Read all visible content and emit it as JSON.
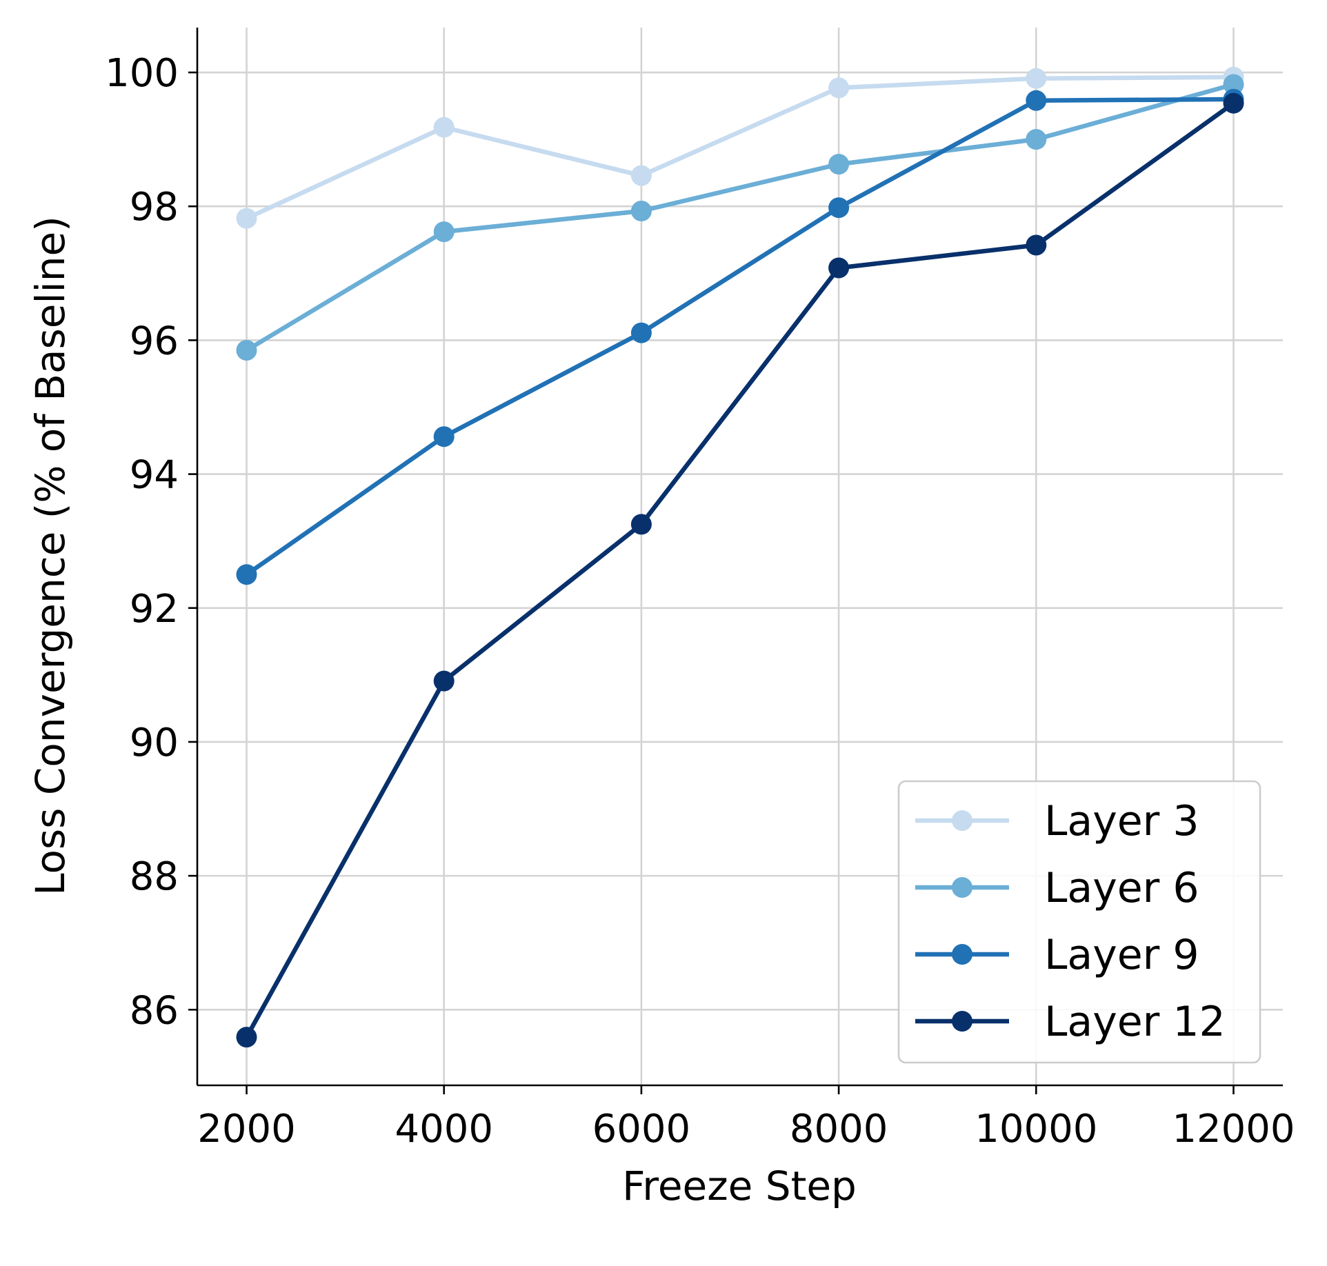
{
  "chart_data": {
    "type": "line",
    "title": "",
    "xlabel": "Freeze Step",
    "ylabel": "Loss Convergence (% of Baseline)",
    "x": [
      2000,
      4000,
      6000,
      8000,
      10000,
      12000
    ],
    "xticks": [
      2000,
      4000,
      6000,
      8000,
      10000,
      12000
    ],
    "yticks": [
      86,
      88,
      90,
      92,
      94,
      96,
      98,
      100
    ],
    "xlim": [
      1500,
      12500
    ],
    "ylim": [
      84.87,
      100.67
    ],
    "grid": true,
    "legend_position": "lower-right",
    "series": [
      {
        "name": "Layer 3",
        "color": "#c6dbef",
        "values": [
          97.82,
          99.18,
          98.46,
          99.77,
          99.91,
          99.93
        ]
      },
      {
        "name": "Layer 6",
        "color": "#6baed6",
        "values": [
          95.85,
          97.62,
          97.93,
          98.63,
          99.0,
          99.82
        ]
      },
      {
        "name": "Layer 9",
        "color": "#2171b5",
        "values": [
          92.5,
          94.56,
          96.11,
          97.98,
          99.58,
          99.6
        ]
      },
      {
        "name": "Layer 12",
        "color": "#08306b",
        "values": [
          85.59,
          90.91,
          93.25,
          97.08,
          97.42,
          99.54
        ]
      }
    ]
  }
}
